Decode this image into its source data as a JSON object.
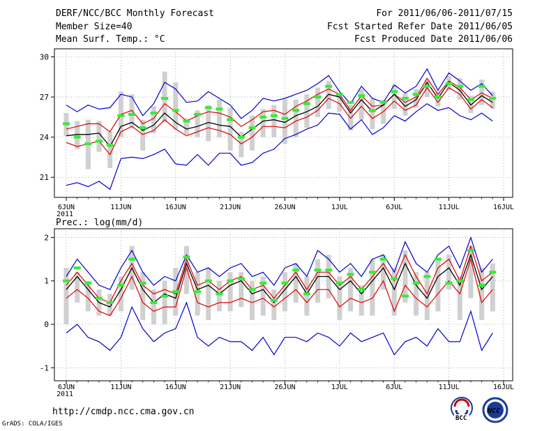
{
  "header": {
    "title": "DERF/NCC/BCC Monthly Forecast",
    "member_size": "Member Size=40",
    "variable1": "Mean Surf. Temp.: °C",
    "period": "For 2011/06/06-2011/07/15",
    "started": "Fcst Started Refer Date 2011/06/05",
    "produced": "Fcst Produced Date 2011/06/06"
  },
  "footer": {
    "url": "http://cmdp.ncc.cma.gov.cn",
    "grads": "GrADS: COLA/IGES",
    "logo_bcc": "BCC",
    "logo_ncc": "NCC"
  },
  "colors": {
    "max_min": "#0000cc",
    "spread": "#dd0000",
    "mean": "#000000",
    "box": "#d0d0d0",
    "marker": "#33ee33"
  },
  "chart_data": [
    {
      "type": "line",
      "title": "Mean Surf. Temp.: °C",
      "x_tick_labels": [
        "6JUN",
        "11JUN",
        "16JUN",
        "21JUN",
        "26JUN",
        "1JUL",
        "6JUL",
        "11JUL",
        "16JUL"
      ],
      "x_tick_days": [
        0,
        5,
        10,
        15,
        20,
        25,
        30,
        35,
        40
      ],
      "year_label": "2011",
      "ylim": [
        19.5,
        30.6
      ],
      "yticks": [
        21,
        24,
        27,
        30
      ],
      "x_days": [
        0,
        1,
        2,
        3,
        4,
        5,
        6,
        7,
        8,
        9,
        10,
        11,
        12,
        13,
        14,
        15,
        16,
        17,
        18,
        19,
        20,
        21,
        22,
        23,
        24,
        25,
        26,
        27,
        28,
        29,
        30,
        31,
        32,
        33,
        34,
        35,
        36,
        37,
        38,
        39
      ],
      "series": [
        {
          "name": "max",
          "values": [
            26.4,
            25.9,
            26.4,
            26.1,
            26.2,
            27.2,
            27.0,
            25.6,
            26.5,
            28.1,
            27.6,
            26.6,
            26.7,
            27.4,
            26.9,
            26.4,
            25.4,
            26.0,
            26.9,
            26.7,
            26.9,
            27.2,
            27.5,
            28.0,
            28.6,
            27.4,
            26.5,
            27.8,
            26.9,
            26.6,
            27.9,
            27.3,
            27.8,
            29.1,
            27.5,
            28.8,
            28.2,
            27.5,
            28.0,
            27.1
          ]
        },
        {
          "name": "upper",
          "values": [
            24.6,
            24.8,
            25.0,
            25.0,
            24.4,
            25.7,
            26.0,
            25.0,
            25.4,
            26.5,
            25.9,
            25.2,
            25.6,
            25.9,
            25.8,
            25.5,
            24.8,
            25.3,
            25.9,
            26.0,
            25.7,
            26.3,
            26.7,
            27.2,
            27.6,
            27.2,
            26.0,
            27.1,
            26.3,
            26.4,
            27.2,
            26.6,
            27.0,
            28.4,
            27.2,
            28.2,
            27.7,
            26.8,
            27.3,
            26.9
          ]
        },
        {
          "name": "mean",
          "values": [
            24.1,
            24.2,
            24.2,
            24.3,
            23.3,
            24.8,
            25.1,
            24.5,
            24.9,
            25.8,
            25.1,
            24.6,
            24.8,
            25.1,
            24.9,
            24.8,
            24.0,
            24.6,
            25.2,
            25.3,
            25.1,
            25.6,
            25.9,
            26.3,
            27.2,
            27.0,
            25.8,
            26.8,
            25.9,
            26.4,
            27.2,
            26.3,
            26.8,
            28.1,
            26.9,
            28.1,
            27.5,
            26.4,
            27.1,
            26.6
          ]
        },
        {
          "name": "lower",
          "values": [
            23.6,
            23.3,
            23.5,
            23.7,
            22.7,
            24.4,
            24.8,
            24.2,
            24.5,
            25.3,
            24.6,
            24.1,
            24.4,
            24.7,
            24.5,
            24.2,
            23.5,
            24.0,
            24.8,
            24.8,
            24.7,
            25.2,
            25.5,
            26.0,
            26.9,
            26.5,
            25.4,
            26.3,
            25.4,
            25.9,
            26.7,
            26.0,
            26.4,
            27.7,
            26.6,
            27.7,
            27.2,
            26.1,
            26.8,
            26.2
          ]
        },
        {
          "name": "min",
          "values": [
            20.4,
            20.6,
            20.3,
            20.7,
            20.1,
            22.4,
            22.5,
            22.4,
            22.7,
            23.1,
            22.0,
            21.9,
            22.7,
            21.9,
            22.8,
            22.8,
            21.9,
            22.1,
            22.8,
            23.1,
            23.9,
            24.2,
            24.6,
            24.9,
            25.8,
            25.7,
            24.6,
            25.3,
            24.2,
            24.7,
            25.6,
            25.2,
            25.9,
            26.5,
            26.0,
            26.2,
            25.6,
            25.3,
            25.8,
            25.2
          ]
        }
      ],
      "boxes": {
        "low": [
          24.1,
          23.1,
          21.6,
          22.9,
          21.7,
          24.0,
          24.7,
          23.0,
          24.3,
          25.1,
          24.6,
          24.2,
          24.0,
          23.7,
          24.0,
          23.0,
          22.5,
          23.0,
          24.0,
          24.0,
          23.5,
          24.0,
          24.7,
          25.5,
          26.1,
          25.9,
          24.5,
          25.3,
          24.6,
          25.0,
          26.1,
          25.6,
          26.2,
          27.0,
          26.3,
          27.5,
          26.8,
          25.8,
          26.4,
          26.1
        ],
        "high": [
          25.8,
          25.2,
          25.3,
          25.2,
          24.4,
          27.4,
          27.2,
          25.3,
          26.3,
          28.9,
          28.1,
          25.4,
          26.0,
          26.4,
          26.8,
          26.2,
          24.4,
          25.6,
          26.1,
          26.4,
          26.8,
          26.8,
          27.2,
          27.7,
          28.2,
          27.2,
          26.4,
          27.6,
          26.9,
          26.8,
          27.9,
          27.3,
          27.6,
          28.3,
          27.4,
          28.6,
          28.4,
          27.1,
          28.3,
          27.4
        ]
      },
      "markers": [
        25.0,
        24.0,
        23.5,
        23.7,
        23.4,
        25.6,
        25.7,
        24.7,
        25.8,
        26.9,
        26.0,
        25.2,
        25.7,
        26.2,
        26.1,
        25.3,
        24.0,
        24.7,
        25.5,
        25.6,
        25.4,
        26.0,
        26.5,
        27.0,
        27.8,
        27.2,
        26.6,
        27.1,
        26.0,
        26.6,
        27.4,
        26.9,
        27.2,
        27.8,
        27.0,
        28.0,
        27.8,
        26.8,
        27.8,
        26.9
      ]
    },
    {
      "type": "line",
      "title": "Prec.: log(mm/d)",
      "x_tick_labels": [
        "6JUN",
        "11JUN",
        "16JUN",
        "21JUN",
        "26JUN",
        "1JUL",
        "6JUL",
        "11JUL",
        "16JUL"
      ],
      "x_tick_days": [
        0,
        5,
        10,
        15,
        20,
        25,
        30,
        35,
        40
      ],
      "year_label": "2011",
      "ylim": [
        -1.3,
        2.2
      ],
      "yticks": [
        -1,
        0,
        1,
        2
      ],
      "x_days": [
        0,
        1,
        2,
        3,
        4,
        5,
        6,
        7,
        8,
        9,
        10,
        11,
        12,
        13,
        14,
        15,
        16,
        17,
        18,
        19,
        20,
        21,
        22,
        23,
        24,
        25,
        26,
        27,
        28,
        29,
        30,
        31,
        32,
        33,
        34,
        35,
        36,
        37,
        38,
        39
      ],
      "series": [
        {
          "name": "max",
          "values": [
            1.1,
            1.5,
            1.2,
            0.9,
            0.8,
            1.3,
            1.7,
            1.2,
            0.9,
            1.1,
            1.0,
            1.6,
            1.2,
            1.3,
            1.1,
            1.3,
            1.4,
            1.1,
            1.2,
            0.9,
            1.3,
            1.4,
            1.1,
            1.7,
            1.5,
            1.2,
            1.4,
            1.1,
            1.5,
            1.6,
            1.2,
            1.9,
            1.4,
            1.2,
            1.6,
            1.8,
            1.3,
            2.0,
            1.2,
            1.5
          ]
        },
        {
          "name": "upper",
          "values": [
            0.9,
            1.2,
            0.9,
            0.6,
            0.5,
            1.0,
            1.4,
            0.9,
            0.7,
            0.8,
            0.7,
            1.5,
            0.9,
            1.0,
            0.8,
            1.0,
            1.1,
            0.8,
            0.9,
            0.6,
            0.9,
            1.2,
            0.8,
            1.2,
            1.2,
            0.9,
            1.1,
            0.8,
            1.1,
            1.4,
            1.0,
            1.6,
            1.1,
            0.7,
            1.3,
            1.5,
            1.0,
            1.8,
            1.0,
            1.2
          ]
        },
        {
          "name": "mean",
          "values": [
            0.8,
            1.1,
            0.8,
            0.5,
            0.4,
            0.8,
            1.3,
            0.8,
            0.5,
            0.7,
            0.6,
            1.4,
            0.8,
            0.9,
            0.7,
            0.9,
            1.0,
            0.7,
            0.8,
            0.5,
            0.8,
            1.1,
            0.7,
            1.1,
            1.1,
            0.8,
            1.0,
            0.7,
            1.0,
            1.3,
            0.8,
            1.4,
            0.9,
            0.6,
            1.1,
            1.3,
            0.9,
            1.6,
            0.8,
            1.1
          ]
        },
        {
          "name": "lower",
          "values": [
            0.6,
            0.8,
            0.6,
            0.3,
            0.2,
            0.6,
            1.1,
            0.5,
            0.3,
            0.4,
            0.4,
            1.3,
            0.5,
            0.4,
            0.5,
            0.5,
            0.6,
            0.5,
            0.6,
            0.4,
            0.6,
            0.8,
            0.5,
            0.8,
            0.8,
            0.4,
            0.6,
            0.5,
            0.6,
            1.0,
            0.3,
            0.9,
            0.6,
            0.4,
            0.7,
            1.0,
            0.7,
            1.5,
            0.5,
            0.8
          ]
        },
        {
          "name": "min",
          "values": [
            -0.2,
            0.0,
            -0.3,
            -0.4,
            -0.6,
            -0.3,
            0.4,
            -0.1,
            -0.4,
            -0.2,
            -0.1,
            0.5,
            -0.3,
            -0.5,
            -0.3,
            -0.4,
            -0.4,
            -0.6,
            -0.3,
            -0.7,
            -0.3,
            -0.3,
            -0.4,
            -0.2,
            -0.3,
            -0.5,
            -0.2,
            -0.4,
            -0.3,
            -0.2,
            -0.7,
            -0.4,
            -0.3,
            -0.5,
            -0.1,
            -0.4,
            -0.4,
            0.3,
            -0.6,
            -0.2
          ]
        }
      ],
      "boxes": {
        "low": [
          0.0,
          0.5,
          0.3,
          0.2,
          0.2,
          0.3,
          0.8,
          0.1,
          0.0,
          0.0,
          0.2,
          0.7,
          0.2,
          0.1,
          0.3,
          0.3,
          0.4,
          0.1,
          0.2,
          0.1,
          0.3,
          0.5,
          0.2,
          0.5,
          0.6,
          0.1,
          0.3,
          0.2,
          0.2,
          0.8,
          0.2,
          0.5,
          0.2,
          0.1,
          0.3,
          0.8,
          0.1,
          0.6,
          0.1,
          0.3
        ],
        "high": [
          1.3,
          1.2,
          1.0,
          0.8,
          0.7,
          1.1,
          1.8,
          1.2,
          0.8,
          1.0,
          1.3,
          1.8,
          1.2,
          1.3,
          1.0,
          1.2,
          1.2,
          1.0,
          1.1,
          0.8,
          1.2,
          1.4,
          1.1,
          1.5,
          1.6,
          1.1,
          1.3,
          0.9,
          1.5,
          1.6,
          1.3,
          1.7,
          1.2,
          1.2,
          1.5,
          1.6,
          1.1,
          1.8,
          1.3,
          1.4
        ]
      },
      "markers": [
        1.0,
        1.3,
        0.95,
        0.6,
        0.5,
        0.9,
        1.5,
        0.95,
        0.5,
        0.65,
        0.75,
        1.55,
        0.75,
        1.0,
        0.7,
        1.0,
        1.05,
        0.8,
        0.95,
        0.55,
        0.95,
        1.25,
        0.7,
        1.25,
        1.25,
        0.95,
        1.15,
        0.8,
        1.2,
        1.5,
        1.05,
        0.65,
        0.95,
        1.1,
        1.5,
        0.95,
        1.0,
        1.7,
        0.9,
        1.2
      ]
    }
  ]
}
